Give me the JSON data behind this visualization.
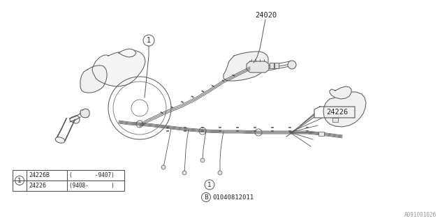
{
  "bg_color": "#ffffff",
  "line_color": "#555555",
  "text_color": "#222222",
  "label_24020": "24020",
  "label_24226": "24226",
  "bottom_text": "01040812011",
  "watermark": "A091001026",
  "table_rows": [
    [
      "24226B",
      "(       -9407)"
    ],
    [
      "24226",
      "(9408-       )"
    ]
  ],
  "fig_width": 6.4,
  "fig_height": 3.2,
  "dpi": 100
}
